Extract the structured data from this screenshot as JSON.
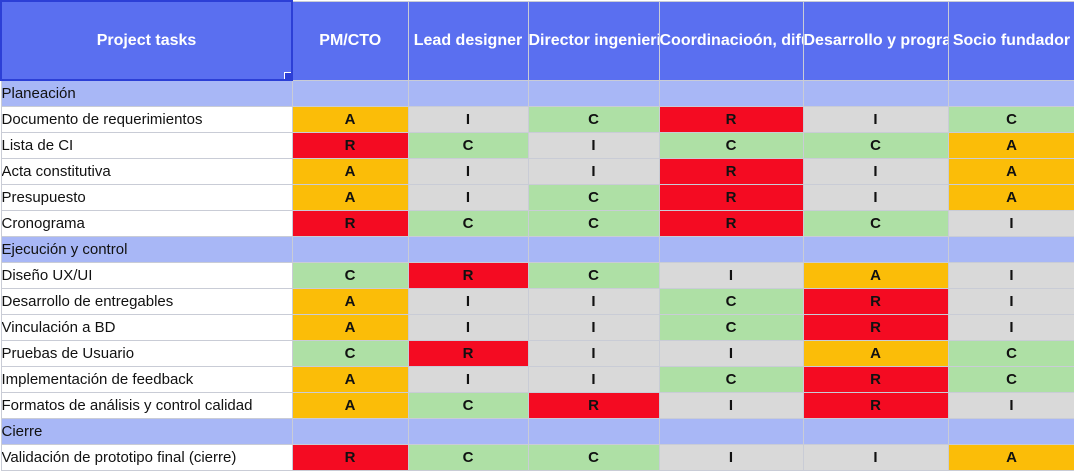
{
  "headers": [
    "Project tasks",
    "PM/CTO",
    "Lead designer",
    "Director ingenieria y calidad",
    "Coordinacioón, difusion",
    "Desarrollo y programacion",
    "Socio fundador"
  ],
  "rows": [
    {
      "type": "section",
      "label": "Planeación"
    },
    {
      "type": "task",
      "label": "Documento de requerimientos",
      "values": [
        "A",
        "I",
        "C",
        "R",
        "I",
        "C"
      ]
    },
    {
      "type": "task",
      "label": "Lista de CI",
      "values": [
        "R",
        "C",
        "I",
        "C",
        "C",
        "A"
      ]
    },
    {
      "type": "task",
      "label": "Acta constitutiva",
      "values": [
        "A",
        "I",
        "I",
        "R",
        "I",
        "A"
      ]
    },
    {
      "type": "task",
      "label": "Presupuesto",
      "values": [
        "A",
        "I",
        "C",
        "R",
        "I",
        "A"
      ]
    },
    {
      "type": "task",
      "label": "Cronograma",
      "values": [
        "R",
        "C",
        "C",
        "R",
        "C",
        "I"
      ]
    },
    {
      "type": "section",
      "label": "Ejecución y control"
    },
    {
      "type": "task",
      "label": "Diseño UX/UI",
      "values": [
        "C",
        "R",
        "C",
        "I",
        "A",
        "I"
      ]
    },
    {
      "type": "task",
      "label": "Desarrollo de entregables",
      "values": [
        "A",
        "I",
        "I",
        "C",
        "R",
        "I"
      ]
    },
    {
      "type": "task",
      "label": "Vinculación a BD",
      "values": [
        "A",
        "I",
        "I",
        "C",
        "R",
        "I"
      ]
    },
    {
      "type": "task",
      "label": "Pruebas de Usuario",
      "values": [
        "C",
        "R",
        "I",
        "I",
        "A",
        "C"
      ]
    },
    {
      "type": "task",
      "label": "Implementación de feedback",
      "values": [
        "A",
        "I",
        "I",
        "C",
        "R",
        "C"
      ]
    },
    {
      "type": "task",
      "label": "Formatos de análisis y control calidad",
      "values": [
        "A",
        "C",
        "R",
        "I",
        "R",
        "I"
      ]
    },
    {
      "type": "section",
      "label": "Cierre"
    },
    {
      "type": "task",
      "label": "Validación de prototipo final (cierre)",
      "values": [
        "R",
        "C",
        "C",
        "I",
        "I",
        "A"
      ]
    }
  ],
  "colors": {
    "R": "#f40b22",
    "A": "#fbbd08",
    "C": "#aee0a5",
    "I": "#d9d9d9",
    "header": "#5a6ff0",
    "section": "#a8b7f6"
  }
}
